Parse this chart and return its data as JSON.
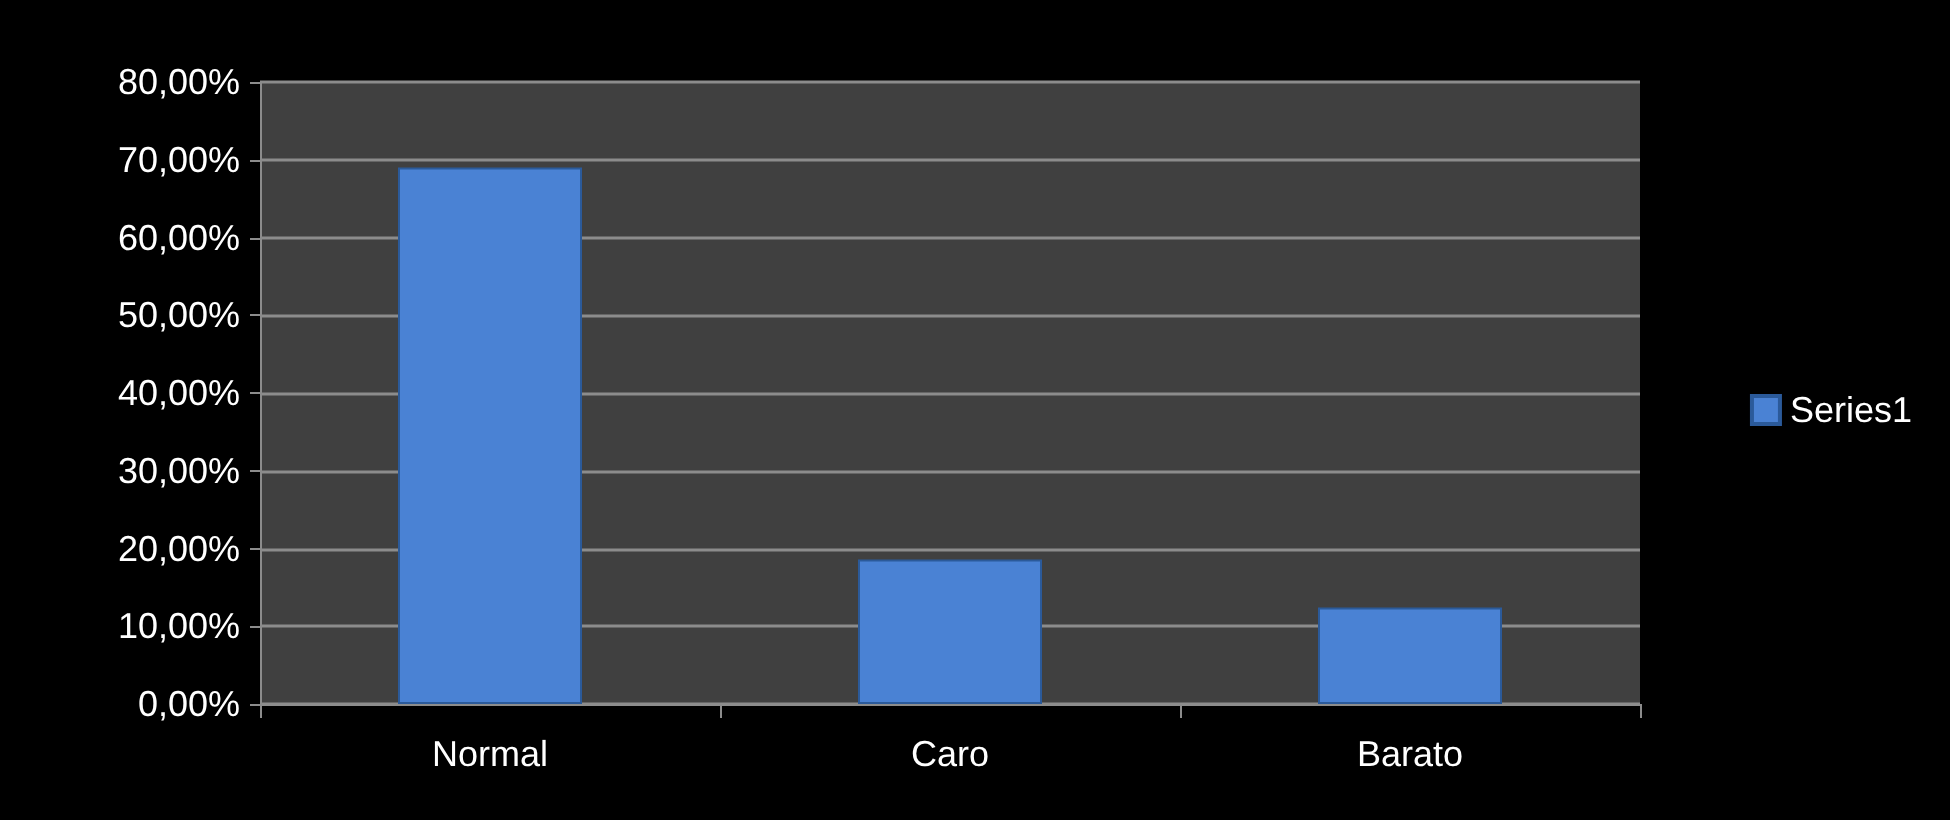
{
  "chart_data": {
    "type": "bar",
    "categories": [
      "Normal",
      "Caro",
      "Barato"
    ],
    "series": [
      {
        "name": "Series1",
        "color": "#4a82d4",
        "values": [
          69,
          18.6,
          12.4
        ]
      }
    ],
    "ylim": [
      0,
      80
    ],
    "yticks": [
      {
        "value": 0,
        "label": "0,00%"
      },
      {
        "value": 10,
        "label": "10,00%"
      },
      {
        "value": 20,
        "label": "20,00%"
      },
      {
        "value": 30,
        "label": "30,00%"
      },
      {
        "value": 40,
        "label": "40,00%"
      },
      {
        "value": 50,
        "label": "50,00%"
      },
      {
        "value": 60,
        "label": "60,00%"
      },
      {
        "value": 70,
        "label": "70,00%"
      },
      {
        "value": 80,
        "label": "80,00%"
      }
    ],
    "grid": "y",
    "legend": "right"
  }
}
